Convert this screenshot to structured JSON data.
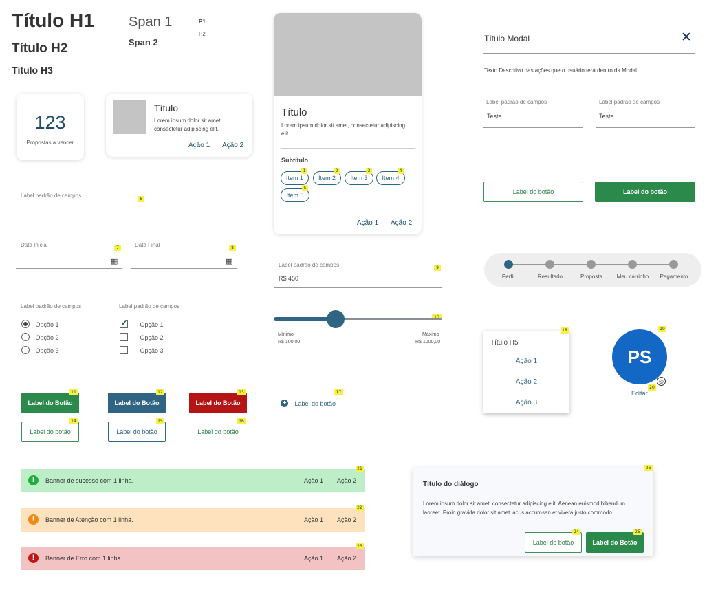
{
  "typography": {
    "h1": "Título H1",
    "h2": "Título H2",
    "h3": "Título H3",
    "span1": "Span 1",
    "span2": "Span 2",
    "p1": "P1",
    "p2": "P2"
  },
  "kpi_card": {
    "value": "123",
    "label": "Propostas a vencer"
  },
  "media_card": {
    "title": "Título",
    "text": "Lorem ipsum dolor sit amet, consectetur adipiscing elit.",
    "action1": "Ação 1",
    "action2": "Ação 2"
  },
  "big_card": {
    "title": "Título",
    "text": "Lorem ipsum dolor sit amet, consectetur adipiscing elit.",
    "subtitle": "Subtítulo",
    "chips": [
      {
        "label": "Item 1",
        "badge": "1"
      },
      {
        "label": "Item 2",
        "badge": "2"
      },
      {
        "label": "Item 3",
        "badge": "3"
      },
      {
        "label": "Item 4",
        "badge": "4"
      },
      {
        "label": "Item 5",
        "badge": "5"
      }
    ],
    "action1": "Ação 1",
    "action2": "Ação 2"
  },
  "modal": {
    "title": "Título Modal",
    "description": "Texto Descritivo das ações que o usuário terá dentro da Modal.",
    "field1_label": "Label padrão de campos",
    "field1_value": "Teste",
    "field2_label": "Label padrão de campos",
    "field2_value": "Teste",
    "btn_outline": "Label do botão",
    "btn_solid": "Label do botão"
  },
  "form": {
    "text_field_label": "Label padrão de campos",
    "text_field_badge": "6",
    "date_start_label": "Data Inicial",
    "date_start_badge": "7",
    "date_end_label": "Data Final",
    "date_end_badge": "8",
    "radio_group_label": "Label padrão de campos",
    "radio_options": [
      "Opção 1",
      "Opção 2",
      "Opção 3"
    ],
    "checkbox_group_label": "Label padrão de campos",
    "checkbox_options": [
      "Opção 1",
      "Opção 2",
      "Opção 3"
    ]
  },
  "currency_field": {
    "label": "Label padrão de campos",
    "value": "R$ 450",
    "badge": "9"
  },
  "slider": {
    "badge": "10",
    "value_fraction": 0.37,
    "min_label": "Mínimo",
    "min_value": "R$ 100,00",
    "max_label": "Máximo",
    "max_value": "R$ 1000,00"
  },
  "stepper": {
    "steps": [
      "Perfil",
      "Resultado",
      "Proposta",
      "Meu carrinho",
      "Pagamento"
    ],
    "current_index": 0
  },
  "dropdown_menu": {
    "badge": "18",
    "title": "Título H5",
    "items": [
      "Ação 1",
      "Ação 2",
      "Ação 3"
    ]
  },
  "avatar": {
    "initials": "PS",
    "badge": "19",
    "edit_badge": "20",
    "edit_label": "Editar"
  },
  "buttons": {
    "solid_green": {
      "label": "Label do Botão",
      "badge": "11"
    },
    "solid_blue": {
      "label": "Label do Botão",
      "badge": "12"
    },
    "solid_red": {
      "label": "Label do Botão",
      "badge": "13"
    },
    "outline_green": {
      "label": "Label do botão",
      "badge": "14"
    },
    "outline_blue": {
      "label": "Label do botão",
      "badge": "15"
    },
    "text_green": {
      "label": "Label do botão",
      "badge": "16"
    },
    "icon_text": {
      "label": "Label do botão",
      "badge": "17"
    }
  },
  "banners": [
    {
      "message": "Banner de sucesso com 1 linha.",
      "action1": "Ação 1",
      "action2": "Ação 2",
      "badge": "21",
      "bg": "#bdeec8",
      "icon_color": "#1fae3f"
    },
    {
      "message": "Banner de Atenção com 1 linha.",
      "action1": "Ação 1",
      "action2": "Ação 2",
      "badge": "22",
      "bg": "#fde2bd",
      "icon_color": "#f08a12"
    },
    {
      "message": "Banner de Erro com 1 linha.",
      "action1": "Ação 1",
      "action2": "Ação 2",
      "badge": "23",
      "bg": "#f3c2c2",
      "icon_color": "#c01616"
    }
  ],
  "dialog": {
    "badge": "26",
    "title": "Título do diálogo",
    "text": "Lorem ipsum dolor sit amet, consectetur adipiscing elit. Aenean euismod bibendum laoreet. Proin gravida dolor sit amet lacus accumsan et vivera justo commodo.",
    "btn_outline": "Label do botão",
    "btn_outline_badge": "24",
    "btn_solid": "Label do Botão",
    "btn_solid_badge": "25"
  }
}
